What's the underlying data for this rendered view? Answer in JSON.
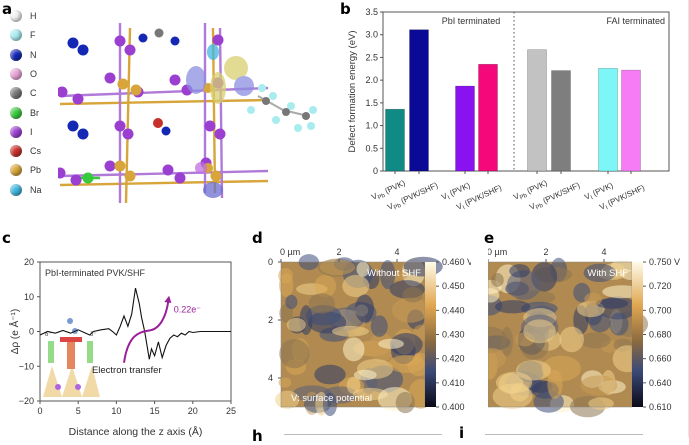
{
  "panels": {
    "a": {
      "letter": "a",
      "legend": [
        {
          "symbol": "H",
          "color": "#f2f2f2"
        },
        {
          "symbol": "F",
          "color": "#a8ecf0"
        },
        {
          "symbol": "N",
          "color": "#1428b4"
        },
        {
          "symbol": "O",
          "color": "#e7a3d6"
        },
        {
          "symbol": "C",
          "color": "#777777"
        },
        {
          "symbol": "Br",
          "color": "#39c93c"
        },
        {
          "symbol": "I",
          "color": "#9b3fd1"
        },
        {
          "symbol": "Cs",
          "color": "#c8302c"
        },
        {
          "symbol": "Pb",
          "color": "#d7a53a"
        },
        {
          "symbol": "Na",
          "color": "#3fb6e0"
        }
      ],
      "image_description": "Crystal structure of PbI-terminated perovskite with SHF molecule and charge density isosurfaces"
    },
    "b": {
      "letter": "b"
    },
    "c": {
      "letter": "c"
    },
    "d": {
      "letter": "d",
      "title": "Without SHF",
      "note": "V: surface potential",
      "x_ticks": [
        "0 µm",
        "2",
        "4"
      ],
      "y_ticks": [
        "0",
        "2",
        "4"
      ],
      "colorbar_ticks": [
        "0.460 V",
        "0.450",
        "0.440",
        "0.430",
        "0.420",
        "0.410",
        "0.400"
      ]
    },
    "e": {
      "letter": "e",
      "title": "With SHF",
      "x_ticks": [
        "0 µm",
        "2",
        "4"
      ],
      "colorbar_ticks": [
        "0.750 V",
        "0.720",
        "0.700",
        "0.680",
        "0.660",
        "0.640",
        "0.610"
      ]
    },
    "h": {
      "letter": "h"
    },
    "i": {
      "letter": "i"
    }
  },
  "chart_data": [
    {
      "id": "b",
      "type": "bar",
      "ylabel": "Defect formation energy (eV)",
      "xlabel": "",
      "ylim": [
        0,
        3.5
      ],
      "yticks": [
        "0",
        "0.5",
        "1.0",
        "1.5",
        "2.0",
        "2.5",
        "3.0",
        "3.5"
      ],
      "groups": [
        {
          "name": "PbI terminated",
          "bars": [
            {
              "label": "V_Pb (PVK)",
              "value": 1.36,
              "color": "#0f8a84"
            },
            {
              "label": "V_Pb (PVK/SHF)",
              "value": 3.11,
              "color": "#0a0a96"
            },
            {
              "label": "V_I (PVK)",
              "value": 1.87,
              "color": "#8a12f0"
            },
            {
              "label": "V_I (PVK/SHF)",
              "value": 2.35,
              "color": "#f5087a"
            }
          ]
        },
        {
          "name": "FAI terminated",
          "bars": [
            {
              "label": "V_Pb (PVK)",
              "value": 2.67,
              "color": "#c2c2c2"
            },
            {
              "label": "V_Pb (PVK/SHF)",
              "value": 2.21,
              "color": "#7e7e7e"
            },
            {
              "label": "V_I (PVK)",
              "value": 2.26,
              "color": "#7df6f8"
            },
            {
              "label": "V_I (PVK/SHF)",
              "value": 2.22,
              "color": "#f57cf5"
            }
          ]
        }
      ],
      "annotations": [
        "PbI terminated",
        "FAI terminated"
      ]
    },
    {
      "id": "c",
      "type": "line",
      "title": "PbI-terminated PVK/SHF",
      "xlabel": "Distance along the z axis (Å)",
      "ylabel": "Δρ (e Å⁻¹)",
      "xlim": [
        0,
        25
      ],
      "ylim": [
        -20,
        20
      ],
      "xticks": [
        "0",
        "5",
        "10",
        "15",
        "20",
        "25"
      ],
      "yticks": [
        "20",
        "10",
        "0",
        "-10",
        "-20"
      ],
      "series": [
        {
          "name": "Δρ",
          "color": "#111111",
          "x": [
            0,
            1,
            2,
            3,
            4,
            5,
            6,
            6.5,
            7,
            8,
            9,
            9.5,
            10,
            10.5,
            11,
            11.5,
            12,
            12.5,
            13,
            13.3,
            13.7,
            14,
            14.3,
            14.6,
            15,
            15.5,
            16,
            16.5,
            17,
            17.5,
            18,
            18.5,
            19,
            19.5,
            20,
            21,
            22,
            23,
            24,
            25
          ],
          "y": [
            -1,
            0,
            -0.5,
            0.3,
            -0.5,
            0.5,
            -0.5,
            -1,
            0,
            0.5,
            0.8,
            0,
            -1,
            1.5,
            4.5,
            1.5,
            5,
            12.5,
            8,
            4,
            0,
            -4,
            -8,
            -5,
            -7,
            -3,
            -7.5,
            -4,
            -2,
            -1,
            -1.5,
            -0.5,
            -1,
            0,
            -0.3,
            0,
            0,
            0,
            0,
            0
          ]
        }
      ],
      "annotations": [
        "0.22e⁻",
        "Electron transfer"
      ],
      "annotation_color": "#9a1f9a"
    }
  ]
}
